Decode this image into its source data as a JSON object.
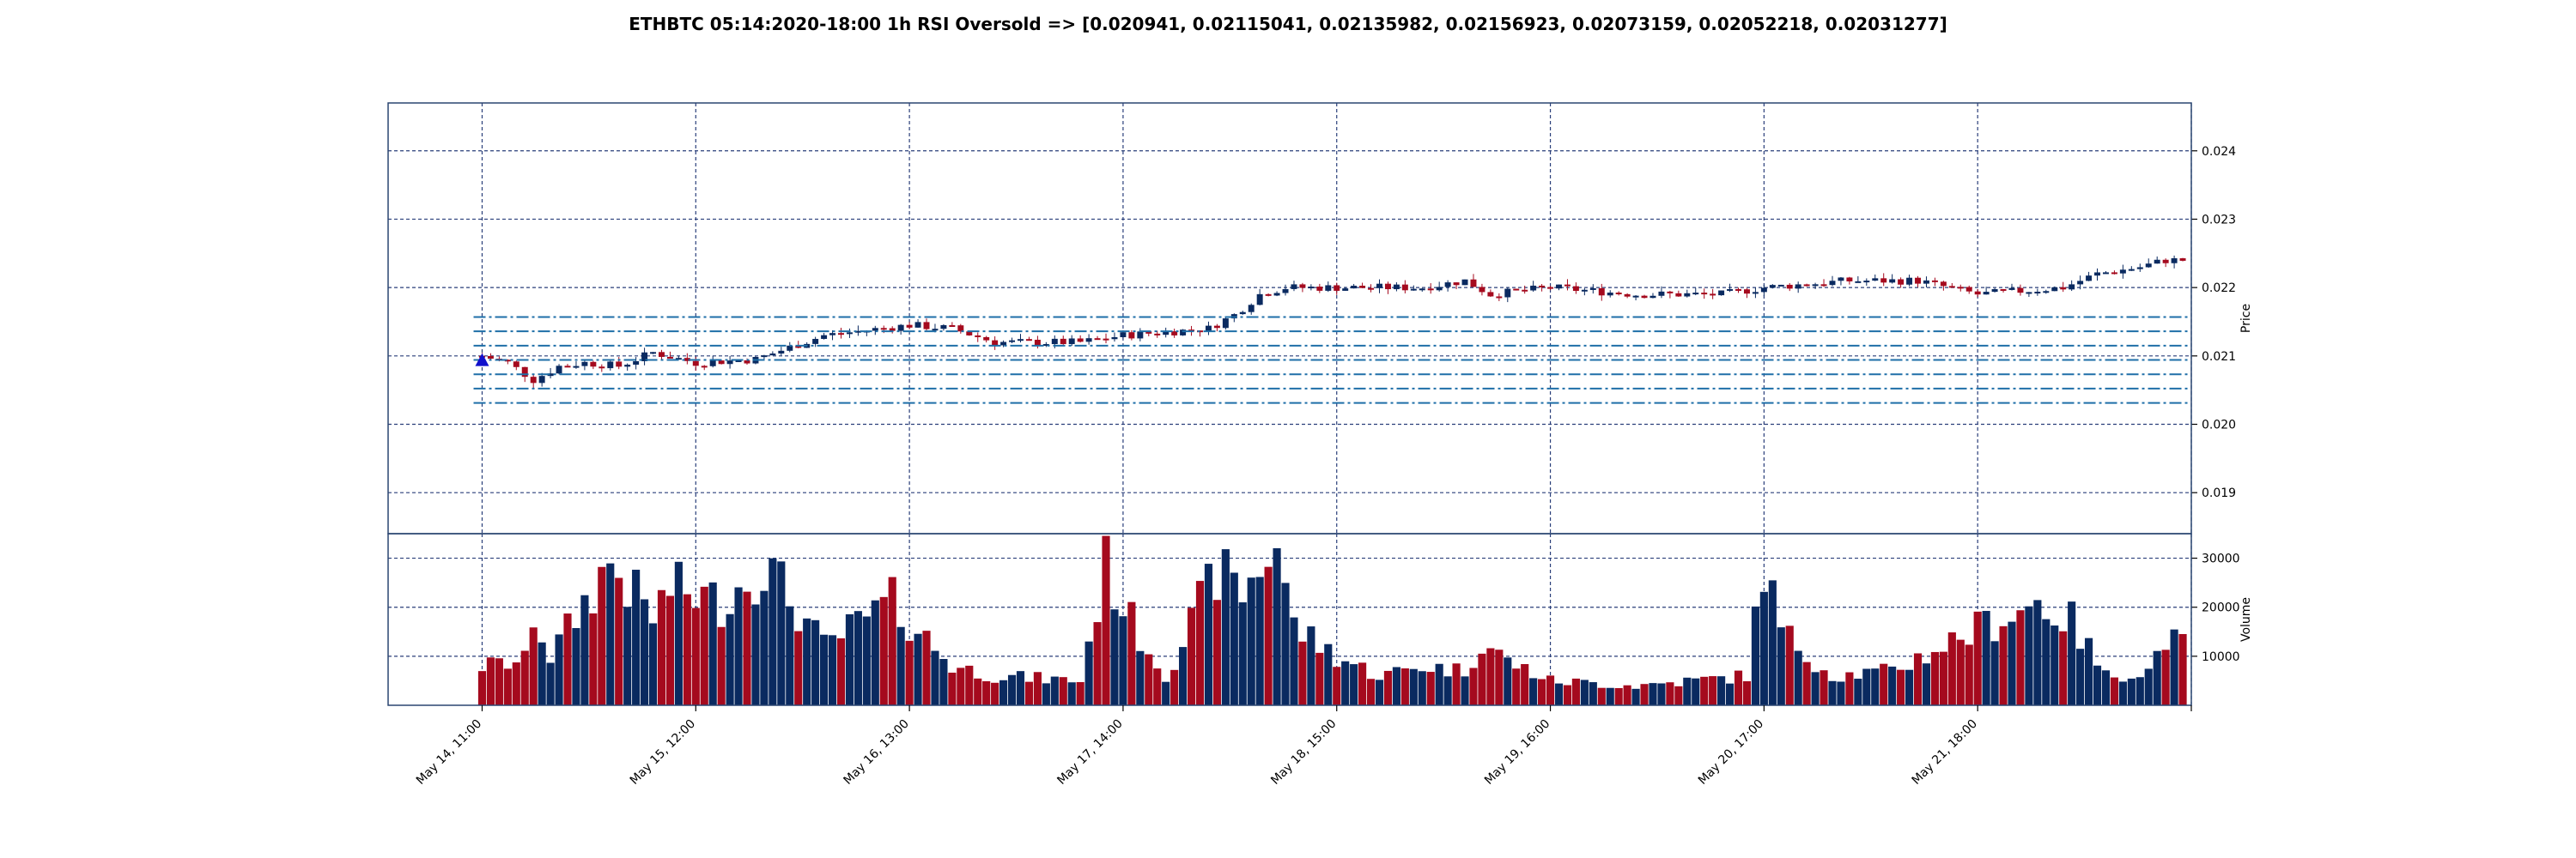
{
  "chart_data": {
    "type": "candlestick",
    "title": "ETHBTC 05:14:2020-18:00 1h RSI Oversold => [0.020941, 0.02115041, 0.02135982, 0.02156923, 0.02073159, 0.02052218, 0.02031277]",
    "panels": {
      "price": {
        "ylabel": "Price",
        "ylim": [
          0.0184,
          0.0247
        ],
        "yticks": [
          0.019,
          0.02,
          0.021,
          0.022,
          0.023,
          0.024
        ],
        "ytick_labels": [
          "0.019",
          "0.020",
          "0.021",
          "0.022",
          "0.023",
          "0.024"
        ],
        "grid": true
      },
      "volume": {
        "ylabel": "Volume",
        "ylim": [
          0,
          35000
        ],
        "yticks": [
          10000,
          20000,
          30000
        ],
        "ytick_labels": [
          "10000",
          "20000",
          "30000"
        ],
        "grid": true
      }
    },
    "xtick_labels": [
      "May 14, 11:00",
      "May 15, 12:00",
      "May 16, 13:00",
      "May 17, 14:00",
      "May 18, 15:00",
      "May 19, 16:00",
      "May 20, 17:00",
      "May 21, 18:00"
    ],
    "xtick_index": [
      0,
      25,
      50,
      75,
      100,
      125,
      150,
      175
    ],
    "x_range": [
      -11,
      200
    ],
    "levels": [
      0.020941,
      0.02115041,
      0.02135982,
      0.02156923,
      0.02073159,
      0.02052218,
      0.02031277
    ],
    "signal_marker": {
      "index": 0,
      "price": 0.02094,
      "shape": "triangle-up"
    },
    "colors": {
      "up": "#0a2a60",
      "down": "#a50a1e",
      "level_line": "#1f6fa8",
      "marker": "#1010cc",
      "grid": "#2a3f7a",
      "frame": "#2a4570"
    },
    "anchors_price": [
      [
        0,
        0.021
      ],
      [
        3,
        0.0209
      ],
      [
        6,
        0.02065
      ],
      [
        9,
        0.02085
      ],
      [
        12,
        0.0209
      ],
      [
        16,
        0.02085
      ],
      [
        20,
        0.02105
      ],
      [
        25,
        0.0209
      ],
      [
        32,
        0.02095
      ],
      [
        40,
        0.0213
      ],
      [
        50,
        0.02145
      ],
      [
        55,
        0.0214
      ],
      [
        60,
        0.0212
      ],
      [
        65,
        0.0212
      ],
      [
        70,
        0.0212
      ],
      [
        75,
        0.0213
      ],
      [
        80,
        0.02135
      ],
      [
        85,
        0.0214
      ],
      [
        88,
        0.0216
      ],
      [
        91,
        0.0219
      ],
      [
        94,
        0.022
      ],
      [
        100,
        0.022
      ],
      [
        105,
        0.022
      ],
      [
        110,
        0.022
      ],
      [
        115,
        0.0221
      ],
      [
        118,
        0.0219
      ],
      [
        125,
        0.022
      ],
      [
        135,
        0.0219
      ],
      [
        145,
        0.0219
      ],
      [
        150,
        0.022
      ],
      [
        160,
        0.0221
      ],
      [
        168,
        0.0221
      ],
      [
        175,
        0.0219
      ],
      [
        185,
        0.022
      ],
      [
        189,
        0.0222
      ],
      [
        194,
        0.0223
      ],
      [
        197,
        0.0224
      ]
    ],
    "volume_anchors": [
      [
        0,
        8000
      ],
      [
        5,
        9000
      ],
      [
        5.5,
        21000
      ],
      [
        8,
        10000
      ],
      [
        15,
        29000
      ],
      [
        20,
        18000
      ],
      [
        22,
        24000
      ],
      [
        28,
        21000
      ],
      [
        33,
        29000
      ],
      [
        40,
        12000
      ],
      [
        48,
        21000
      ],
      [
        55,
        8000
      ],
      [
        60,
        6000
      ],
      [
        70,
        5000
      ],
      [
        73,
        28500
      ],
      [
        76,
        17000
      ],
      [
        80,
        6000
      ],
      [
        86,
        27500
      ],
      [
        89,
        23000
      ],
      [
        93,
        33500
      ],
      [
        95,
        16000
      ],
      [
        100,
        10000
      ],
      [
        105,
        6000
      ],
      [
        110,
        8000
      ],
      [
        115,
        7000
      ],
      [
        117,
        13000
      ],
      [
        120,
        9000
      ],
      [
        125,
        5000
      ],
      [
        135,
        4000
      ],
      [
        148,
        6000
      ],
      [
        150,
        29000
      ],
      [
        152,
        15000
      ],
      [
        158,
        6000
      ],
      [
        165,
        7000
      ],
      [
        176,
        16500
      ],
      [
        182,
        21000
      ],
      [
        186,
        17000
      ],
      [
        190,
        6000
      ],
      [
        195,
        7000
      ],
      [
        197,
        14000
      ],
      [
        199,
        12000
      ]
    ]
  }
}
